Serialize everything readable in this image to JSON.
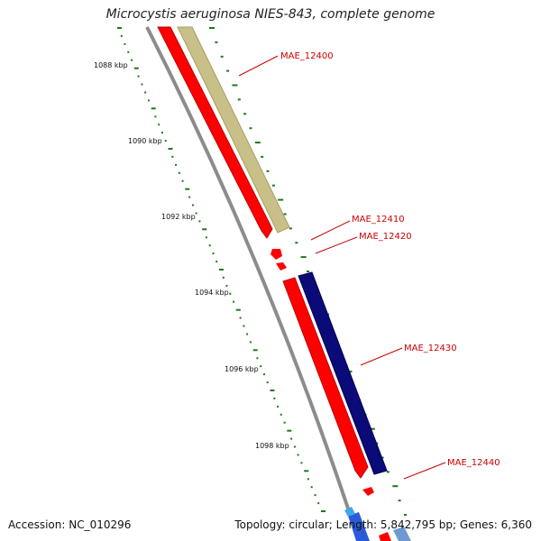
{
  "title": "Microcystis aeruginosa NIES-843, complete genome",
  "footer": {
    "accession": "Accession: NC_010296",
    "summary": "Topology: circular; Length: 5,842,795 bp; Genes: 6,360"
  },
  "colors": {
    "forward_cds": "#ff0000",
    "reverse_cds": "#ff0000",
    "gene_olive": "#c8c088",
    "gene_navy": "#0a0a78",
    "backbone": "#8c8c8c",
    "tick": "#1a7a1a",
    "label": "#cc0000"
  },
  "scale": {
    "labels": [
      "1088 kbp",
      "1090 kbp",
      "1092 kbp",
      "1094 kbp",
      "1096 kbp",
      "1098 kbp"
    ]
  },
  "genes": [
    {
      "id": "MAE_12400"
    },
    {
      "id": "MAE_12410"
    },
    {
      "id": "MAE_12420"
    },
    {
      "id": "MAE_12430"
    },
    {
      "id": "MAE_12440"
    }
  ]
}
